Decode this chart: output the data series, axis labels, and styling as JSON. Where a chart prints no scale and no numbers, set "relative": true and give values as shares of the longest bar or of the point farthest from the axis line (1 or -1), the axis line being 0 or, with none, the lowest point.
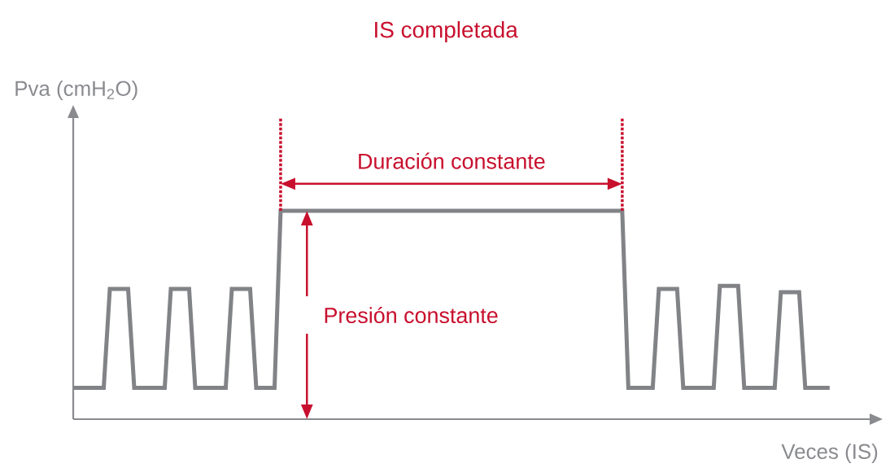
{
  "chart_data": {
    "type": "line",
    "relative": true,
    "title": "IS completada",
    "xlabel": "Veces (IS)",
    "categories": [
      null,
      null,
      null,
      null,
      null,
      null,
      null,
      null,
      null,
      null,
      null,
      null,
      null,
      null,
      null,
      null,
      null,
      null,
      null,
      null,
      null,
      null,
      null,
      null,
      null,
      null,
      null,
      null,
      null,
      null,
      null,
      null,
      null,
      null,
      null,
      null,
      null,
      null,
      null,
      null,
      null,
      null,
      null,
      null,
      null,
      null,
      null,
      null,
      null,
      null,
      null,
      null,
      null,
      null,
      null,
      null,
      null,
      null,
      null,
      null,
      null,
      null,
      null,
      null,
      null,
      null,
      null,
      null,
      null,
      null,
      null,
      null,
      null,
      null,
      null,
      null,
      null,
      null,
      null,
      null,
      null,
      null,
      null,
      null,
      null,
      null,
      null,
      null,
      null,
      null,
      null,
      null,
      null,
      null,
      null,
      null,
      null,
      null,
      null,
      null,
      null,
      null,
      null,
      null,
      null,
      null,
      null,
      null,
      null,
      null,
      null,
      null,
      null,
      null,
      null,
      null,
      null,
      null,
      null,
      null,
      null,
      null,
      null,
      null,
      null
    ],
    "series": [
      {
        "color": "#828387",
        "values": [
          0.15,
          0.15,
          0.15,
          0.15,
          0.15,
          0.15,
          0.625,
          0.625,
          0.625,
          0.625,
          0.15,
          0.15,
          0.15,
          0.15,
          0.15,
          0.15,
          0.625,
          0.625,
          0.625,
          0.625,
          0.15,
          0.15,
          0.15,
          0.15,
          0.15,
          0.15,
          0.625,
          0.625,
          0.625,
          0.625,
          0.15,
          0.15,
          0.15,
          0.15,
          1,
          1,
          1,
          1,
          1,
          1,
          1,
          1,
          1,
          1,
          1,
          1,
          1,
          1,
          1,
          1,
          1,
          1,
          1,
          1,
          1,
          1,
          1,
          1,
          1,
          1,
          1,
          1,
          1,
          1,
          1,
          1,
          1,
          1,
          1,
          1,
          1,
          1,
          1,
          1,
          1,
          1,
          1,
          1,
          1,
          1,
          1,
          1,
          1,
          1,
          1,
          1,
          1,
          1,
          1,
          1,
          1,
          0.15,
          0.15,
          0.15,
          0.15,
          0.15,
          0.625,
          0.625,
          0.625,
          0.625,
          0.15,
          0.15,
          0.15,
          0.15,
          0.15,
          0.15,
          0.64,
          0.64,
          0.64,
          0.64,
          0.15,
          0.15,
          0.15,
          0.15,
          0.15,
          0.15,
          0.61,
          0.61,
          0.61,
          0.61,
          0.15,
          0.15,
          0.15,
          0.15,
          0.15
        ]
      }
    ],
    "annotations": [
      "Duración constante",
      "Presión constante",
      "Pva (cmH$_{2}$O)"
    ]
  }
}
